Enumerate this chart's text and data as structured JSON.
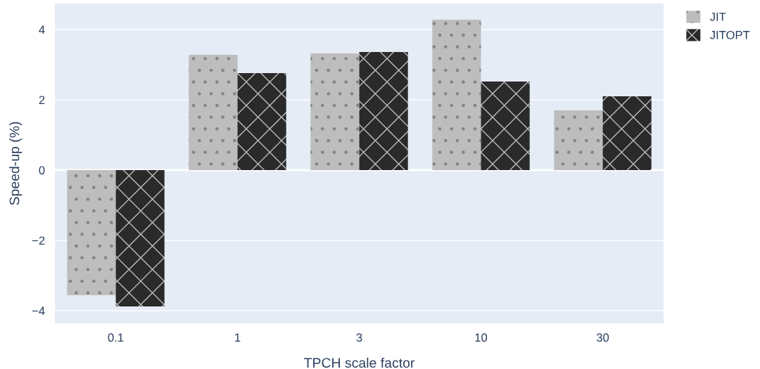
{
  "chart_data": {
    "type": "bar",
    "xlabel": "TPCH scale factor",
    "ylabel": "Speed-up (%)",
    "categories": [
      "0.1",
      "1",
      "3",
      "10",
      "30"
    ],
    "series": [
      {
        "name": "JIT",
        "color": "#bdbdbd",
        "values": [
          -3.56,
          3.28,
          3.32,
          4.28,
          1.7
        ]
      },
      {
        "name": "JITOPT",
        "color": "#2a2a2a",
        "values": [
          -3.88,
          2.76,
          3.36,
          2.52,
          2.1
        ]
      }
    ],
    "ylim": [
      -4.36,
      4.74
    ],
    "yticks": [
      {
        "value": -4,
        "label": "−4"
      },
      {
        "value": -2,
        "label": "−2"
      },
      0,
      2,
      4
    ],
    "grid": "y",
    "legend": "top right"
  }
}
